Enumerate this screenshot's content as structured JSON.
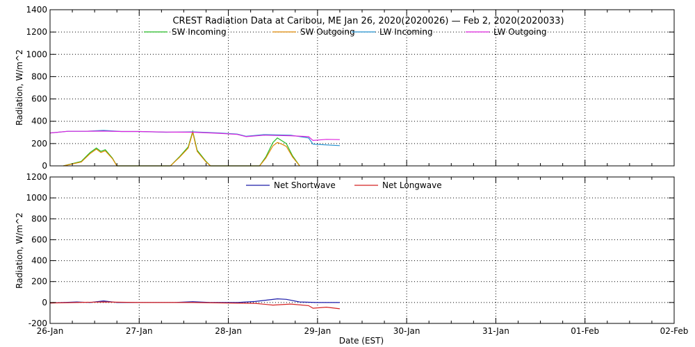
{
  "chart_data": {
    "title": "CREST Radiation Data at Caribou, ME   Jan 26, 2020(2020026) — Feb  2, 2020(2020033)",
    "xlabel": "Date (EST)",
    "x_ticks": [
      "26-Jan",
      "27-Jan",
      "28-Jan",
      "29-Jan",
      "30-Jan",
      "31-Jan",
      "01-Feb",
      "02-Feb"
    ],
    "panels": [
      {
        "type": "line",
        "ylabel": "Radiation, W/m^2",
        "ylim": [
          0,
          1400
        ],
        "y_ticks": [
          0,
          200,
          400,
          600,
          800,
          1000,
          1200,
          1400
        ],
        "grid": true,
        "legend_position": "top",
        "series": [
          {
            "name": "SW Incoming",
            "color": "#22bb22",
            "x": [
              0.15,
              0.35,
              0.45,
              0.52,
              0.57,
              0.62,
              0.7,
              0.75,
              1.35,
              1.45,
              1.55,
              1.6,
              1.65,
              1.75,
              1.8,
              2.35,
              2.42,
              2.5,
              2.55,
              2.6,
              2.65,
              2.72,
              2.8
            ],
            "y": [
              0,
              40,
              120,
              160,
              130,
              145,
              70,
              0,
              0,
              80,
              170,
              310,
              140,
              40,
              0,
              0,
              80,
              210,
              250,
              225,
              200,
              90,
              0
            ]
          },
          {
            "name": "SW Outgoing",
            "color": "#dd8800",
            "x": [
              0.15,
              0.35,
              0.45,
              0.52,
              0.57,
              0.62,
              0.7,
              0.75,
              1.35,
              1.45,
              1.55,
              1.6,
              1.65,
              1.75,
              1.8,
              2.35,
              2.42,
              2.5,
              2.55,
              2.6,
              2.65,
              2.72,
              2.8
            ],
            "y": [
              0,
              35,
              110,
              150,
              120,
              135,
              65,
              0,
              0,
              75,
              160,
              300,
              130,
              35,
              0,
              0,
              70,
              180,
              210,
              195,
              175,
              80,
              0
            ]
          },
          {
            "name": "LW Incoming",
            "color": "#1f8fcf",
            "x": [
              0,
              0.2,
              0.4,
              0.6,
              0.8,
              1.0,
              1.3,
              1.6,
              1.9,
              2.1,
              2.2,
              2.4,
              2.7,
              2.9,
              2.95,
              3.1,
              3.25
            ],
            "y": [
              295,
              310,
              310,
              318,
              308,
              308,
              302,
              305,
              295,
              285,
              265,
              280,
              275,
              250,
              195,
              188,
              182
            ]
          },
          {
            "name": "LW Outgoing",
            "color": "#dd22dd",
            "x": [
              0,
              0.2,
              0.4,
              0.6,
              0.8,
              1.0,
              1.3,
              1.6,
              1.9,
              2.1,
              2.2,
              2.4,
              2.7,
              2.9,
              2.95,
              3.1,
              3.25
            ],
            "y": [
              295,
              310,
              310,
              312,
              308,
              308,
              303,
              302,
              292,
              282,
              262,
              275,
              270,
              262,
              228,
              238,
              235
            ]
          }
        ]
      },
      {
        "type": "line",
        "ylabel": "Radiation, W/m^2",
        "ylim": [
          -200,
          1200
        ],
        "y_ticks": [
          -200,
          0,
          200,
          400,
          600,
          800,
          1000,
          1200
        ],
        "grid": true,
        "legend_position": "top",
        "series": [
          {
            "name": "Net Shortwave",
            "color": "#1a1aa8",
            "x": [
              0,
              0.3,
              0.45,
              0.6,
              0.75,
              1.0,
              1.4,
              1.6,
              1.8,
              2.0,
              2.1,
              2.3,
              2.45,
              2.55,
              2.65,
              2.8,
              3.0,
              3.25
            ],
            "y": [
              -5,
              5,
              0,
              15,
              0,
              0,
              0,
              8,
              0,
              0,
              0,
              10,
              25,
              35,
              30,
              5,
              0,
              0
            ]
          },
          {
            "name": "Net Longwave",
            "color": "#d42020",
            "x": [
              0,
              0.3,
              0.6,
              1.0,
              1.6,
              2.0,
              2.3,
              2.5,
              2.7,
              2.9,
              2.95,
              3.1,
              3.25
            ],
            "y": [
              -5,
              0,
              5,
              0,
              0,
              -5,
              -8,
              -25,
              -15,
              -30,
              -55,
              -45,
              -60
            ]
          }
        ]
      }
    ]
  }
}
